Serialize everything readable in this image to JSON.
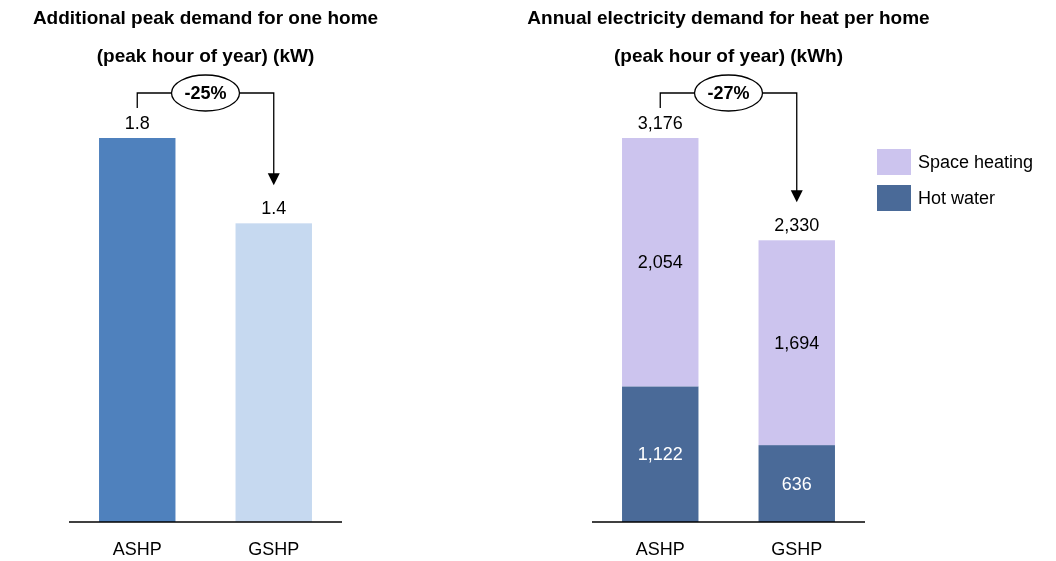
{
  "chart_data": [
    {
      "type": "bar",
      "title": "Additional peak demand for one home\n(peak hour of year) (kW)",
      "categories": [
        "ASHP",
        "GSHP"
      ],
      "values": [
        1.8,
        1.4
      ],
      "colors": [
        "#4f81bd",
        "#c6d9f0"
      ],
      "data_labels": true,
      "annotations": [
        "-25%"
      ],
      "tick_labels": "x"
    },
    {
      "type": "bar",
      "stacked": true,
      "title": "Annual electricity demand for heat per home\n(peak hour of year) (kWh)",
      "categories": [
        "ASHP",
        "GSHP"
      ],
      "series": [
        {
          "name": "Hot water",
          "color": "#4a6a98",
          "values": [
            1122,
            636
          ],
          "value_labels": [
            "1,122",
            "636"
          ]
        },
        {
          "name": "Space heating",
          "color": "#ccc4ee",
          "values": [
            2054,
            1694
          ],
          "value_labels": [
            "2,054",
            "1,694"
          ]
        }
      ],
      "totals": [
        "3,176",
        "2,330"
      ],
      "legend": "right",
      "annotations": [
        "-27%"
      ],
      "tick_labels": "x"
    }
  ]
}
